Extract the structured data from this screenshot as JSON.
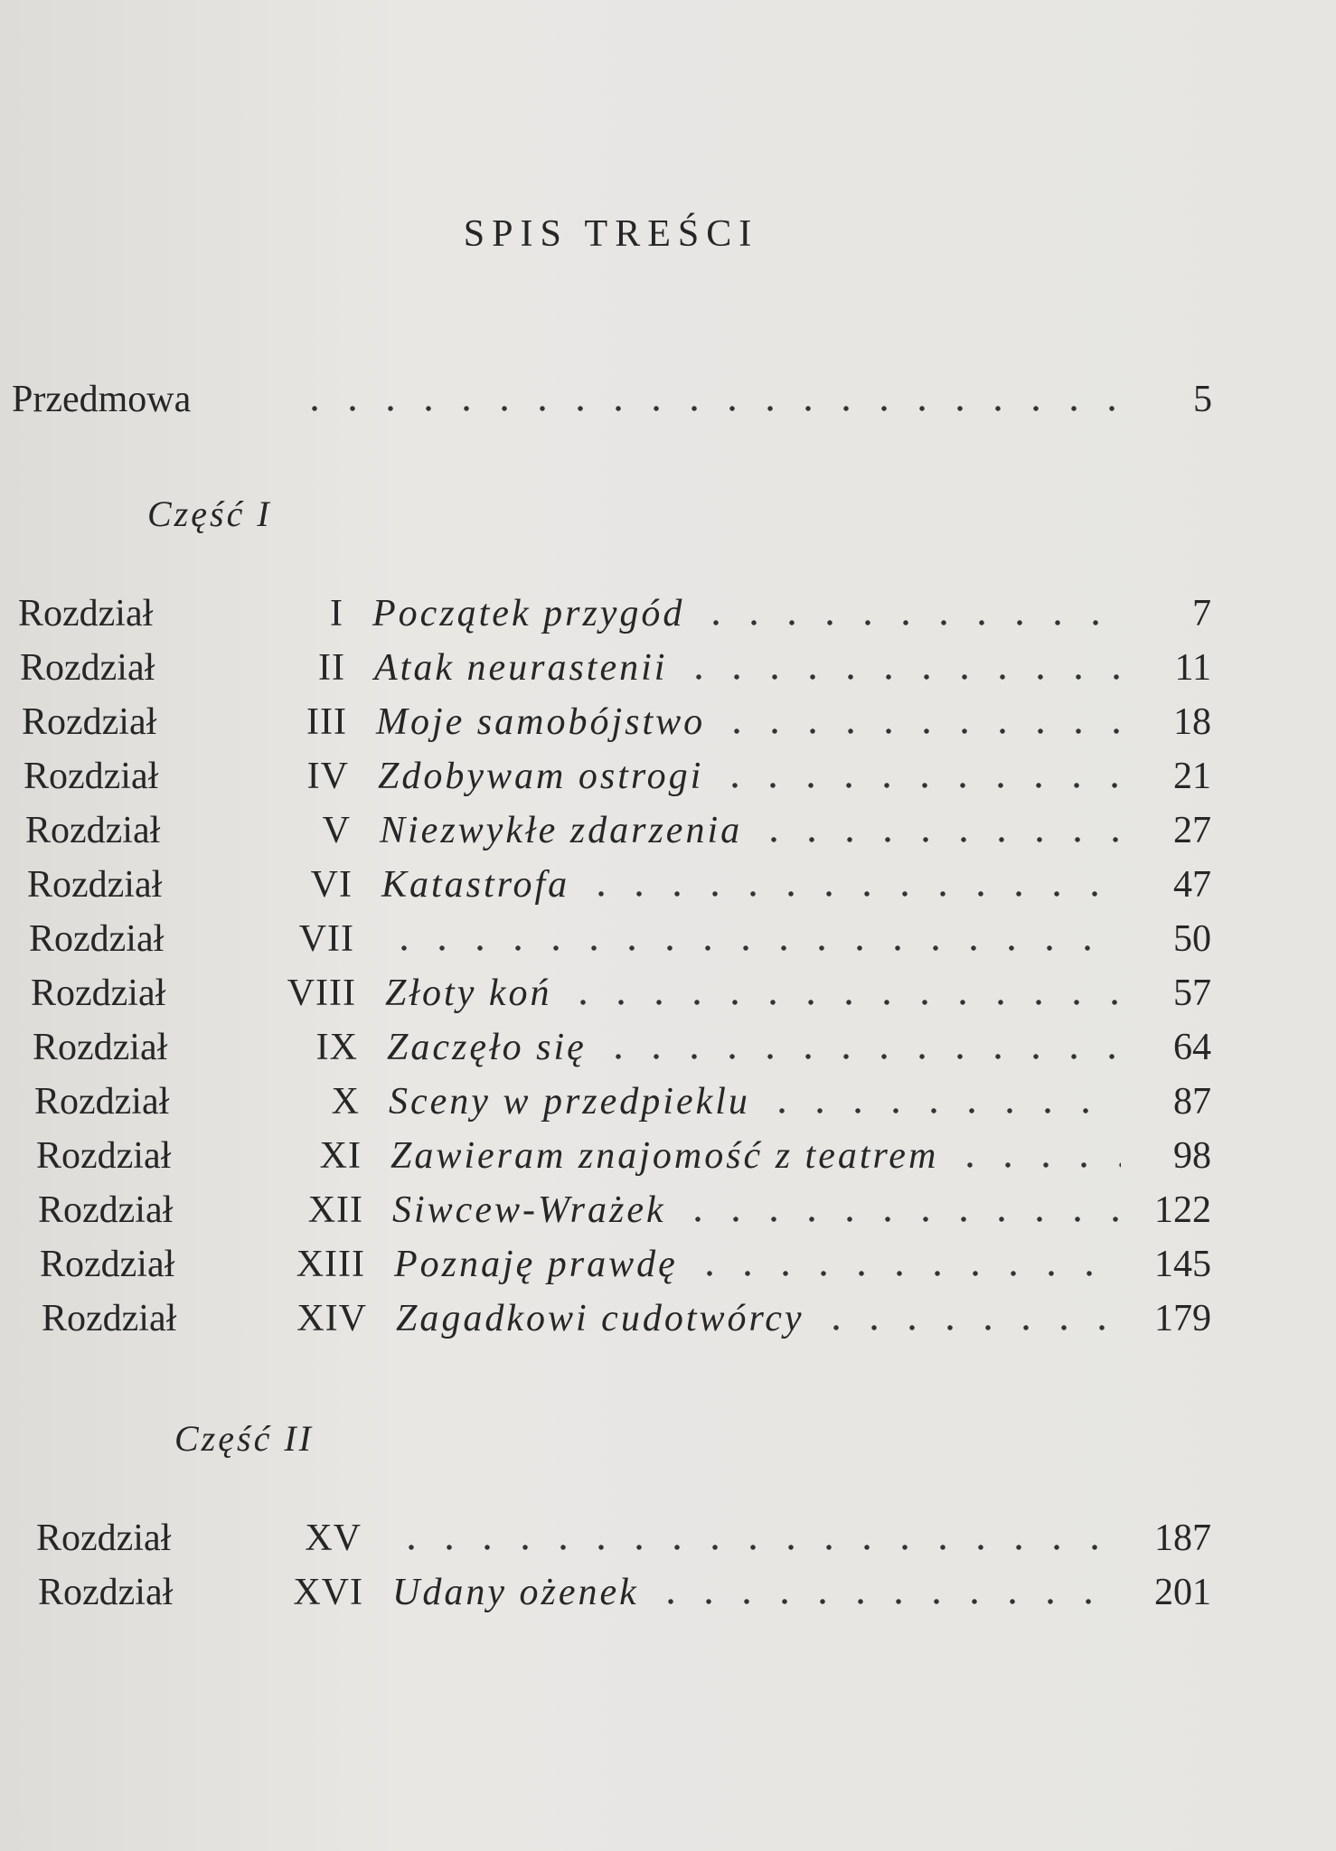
{
  "title": "SPIS TREŚCI",
  "preface": {
    "label": "Przedmowa",
    "page": 5
  },
  "parts": [
    {
      "label": "Część I",
      "chapters": [
        {
          "label": "Rozdział",
          "numeral": "I",
          "title": "Początek przygód",
          "page": 7
        },
        {
          "label": "Rozdział",
          "numeral": "II",
          "title": "Atak neurastenii",
          "page": 11
        },
        {
          "label": "Rozdział",
          "numeral": "III",
          "title": "Moje samobójstwo",
          "page": 18
        },
        {
          "label": "Rozdział",
          "numeral": "IV",
          "title": "Zdobywam ostrogi",
          "page": 21
        },
        {
          "label": "Rozdział",
          "numeral": "V",
          "title": "Niezwykłe zdarzenia",
          "page": 27
        },
        {
          "label": "Rozdział",
          "numeral": "VI",
          "title": "Katastrofa",
          "page": 47
        },
        {
          "label": "Rozdział",
          "numeral": "VII",
          "page": 50
        },
        {
          "label": "Rozdział",
          "numeral": "VIII",
          "title": "Złoty koń",
          "page": 57
        },
        {
          "label": "Rozdział",
          "numeral": "IX",
          "title": "Zaczęło się",
          "page": 64
        },
        {
          "label": "Rozdział",
          "numeral": "X",
          "title": "Sceny w przedpieklu",
          "page": 87
        },
        {
          "label": "Rozdział",
          "numeral": "XI",
          "title": "Zawieram znajomość z teatrem",
          "page": 98
        },
        {
          "label": "Rozdział",
          "numeral": "XII",
          "title": "Siwcew-Wrażek",
          "page": 122
        },
        {
          "label": "Rozdział",
          "numeral": "XIII",
          "title": "Poznaję prawdę",
          "page": 145
        },
        {
          "label": "Rozdział",
          "numeral": "XIV",
          "title": "Zagadkowi cudotwórcy",
          "page": 179
        }
      ]
    },
    {
      "label": "Część II",
      "chapters": [
        {
          "label": "Rozdział",
          "numeral": "XV",
          "page": 187
        },
        {
          "label": "Rozdział",
          "numeral": "XVI",
          "title": "Udany ożenek",
          "page": 201
        }
      ]
    }
  ]
}
